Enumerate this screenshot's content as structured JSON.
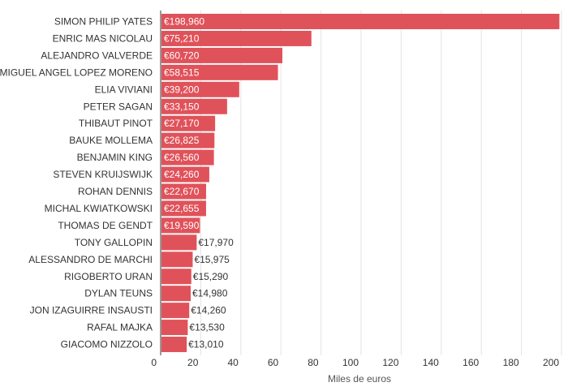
{
  "chart_data": {
    "type": "bar",
    "orientation": "horizontal",
    "xlabel": "Miles de euros",
    "xlim": [
      0,
      200
    ],
    "xticks": [
      0,
      20,
      40,
      60,
      80,
      100,
      120,
      140,
      160,
      180,
      200
    ],
    "grid": true,
    "bar_color": "#e0525a",
    "categories": [
      "SIMON PHILIP YATES",
      "ENRIC MAS NICOLAU",
      "ALEJANDRO VALVERDE",
      "MIGUEL ANGEL LOPEZ MORENO",
      "ELIA VIVIANI",
      "PETER SAGAN",
      "THIBAUT PINOT",
      "BAUKE MOLLEMA",
      "BENJAMIN KING",
      "STEVEN KRUIJSWIJK",
      "ROHAN DENNIS",
      "MICHAL KWIATKOWSKI",
      "THOMAS DE GENDT",
      "TONY GALLOPIN",
      "ALESSANDRO DE MARCHI",
      "RIGOBERTO URAN",
      "DYLAN TEUNS",
      "JON IZAGUIRRE INSAUSTI",
      "RAFAL MAJKA",
      "GIACOMO NIZZOLO"
    ],
    "values": [
      198.96,
      75.21,
      60.72,
      58.515,
      39.2,
      33.15,
      27.17,
      26.825,
      26.56,
      24.26,
      22.67,
      22.655,
      19.59,
      17.97,
      15.975,
      15.29,
      14.98,
      14.26,
      13.53,
      13.01
    ],
    "value_labels": [
      "€198,960",
      "€75,210",
      "€60,720",
      "€58,515",
      "€39,200",
      "€33,150",
      "€27,170",
      "€26,825",
      "€26,560",
      "€24,260",
      "€22,670",
      "€22,655",
      "€19,590",
      "€17,970",
      "€15,975",
      "€15,290",
      "€14,980",
      "€14,260",
      "€13,530",
      "€13,010"
    ]
  }
}
